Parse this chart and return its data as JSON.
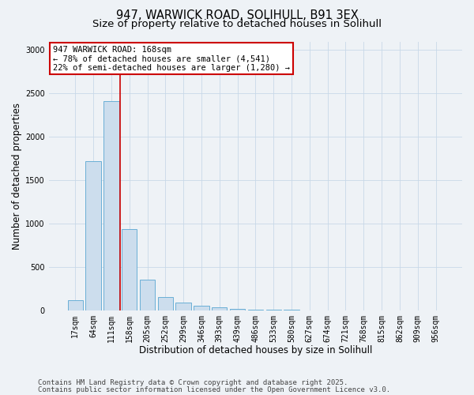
{
  "title_line1": "947, WARWICK ROAD, SOLIHULL, B91 3EX",
  "title_line2": "Size of property relative to detached houses in Solihull",
  "xlabel": "Distribution of detached houses by size in Solihull",
  "ylabel": "Number of detached properties",
  "bar_labels": [
    "17sqm",
    "64sqm",
    "111sqm",
    "158sqm",
    "205sqm",
    "252sqm",
    "299sqm",
    "346sqm",
    "393sqm",
    "439sqm",
    "486sqm",
    "533sqm",
    "580sqm",
    "627sqm",
    "674sqm",
    "721sqm",
    "768sqm",
    "815sqm",
    "862sqm",
    "909sqm",
    "956sqm"
  ],
  "bar_values": [
    120,
    1720,
    2410,
    940,
    350,
    155,
    85,
    55,
    35,
    15,
    8,
    4,
    3,
    1,
    1,
    0,
    0,
    0,
    0,
    0,
    0
  ],
  "bar_color": "#ccdded",
  "bar_edge_color": "#6aafd6",
  "red_line_color": "#cc0000",
  "annotation_text": "947 WARWICK ROAD: 168sqm\n← 78% of detached houses are smaller (4,541)\n22% of semi-detached houses are larger (1,280) →",
  "annotation_box_color": "#ffffff",
  "annotation_box_edge": "#cc0000",
  "ylim": [
    0,
    3100
  ],
  "yticks": [
    0,
    500,
    1000,
    1500,
    2000,
    2500,
    3000
  ],
  "grid_color": "#c8d8e8",
  "background_color": "#eef2f6",
  "footer_line1": "Contains HM Land Registry data © Crown copyright and database right 2025.",
  "footer_line2": "Contains public sector information licensed under the Open Government Licence v3.0.",
  "title_fontsize": 10.5,
  "subtitle_fontsize": 9.5,
  "axis_label_fontsize": 8.5,
  "tick_fontsize": 7,
  "annotation_fontsize": 7.5,
  "footer_fontsize": 6.5
}
